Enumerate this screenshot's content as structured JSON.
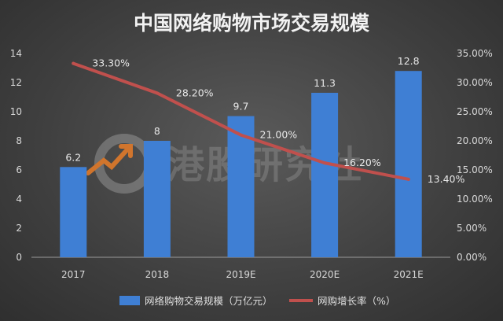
{
  "chart_data": {
    "type": "bar+line",
    "title": "中国网络购物市场交易规模",
    "categories": [
      "2017",
      "2018",
      "2019E",
      "2020E",
      "2021E"
    ],
    "series": [
      {
        "name": "网络购物交易规模（万亿元）",
        "type": "bar",
        "axis": "left",
        "values": [
          6.2,
          8,
          9.7,
          11.3,
          12.8
        ],
        "labels": [
          "6.2",
          "8",
          "9.7",
          "11.3",
          "12.8"
        ],
        "color": "#3f7fd4"
      },
      {
        "name": "网购增长率（%）",
        "type": "line",
        "axis": "right",
        "values": [
          33.3,
          28.2,
          21.0,
          16.2,
          13.4
        ],
        "labels": [
          "33.30%",
          "28.20%",
          "21.00%",
          "16.20%",
          "13.40%"
        ],
        "color": "#c0504d"
      }
    ],
    "y_left": {
      "min": 0,
      "max": 14,
      "ticks": [
        "0",
        "2",
        "4",
        "6",
        "8",
        "10",
        "12",
        "14"
      ]
    },
    "y_right": {
      "min": 0,
      "max": 35,
      "ticks": [
        "0.00%",
        "5.00%",
        "10.00%",
        "15.00%",
        "20.00%",
        "25.00%",
        "30.00%",
        "35.00%"
      ]
    },
    "grid": false,
    "legend_position": "bottom"
  },
  "watermark": {
    "text": "港股研究社"
  }
}
